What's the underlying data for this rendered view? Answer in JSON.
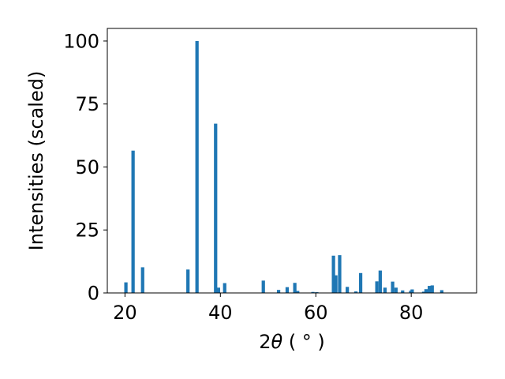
{
  "chart_data": {
    "type": "bar",
    "xlabel_main": "2",
    "xlabel_symbol": "θ",
    "xlabel_unit": " ( ° )",
    "ylabel": "Intensities (scaled)",
    "xlim": [
      16.3,
      93.7
    ],
    "ylim": [
      0,
      105
    ],
    "xticks": [
      20,
      40,
      60,
      80
    ],
    "yticks": [
      0,
      25,
      50,
      75,
      100
    ],
    "bar_color": "#1f77b4",
    "bar_width": 0.7,
    "grid": false,
    "legend": "none",
    "x": [
      20.2,
      21.7,
      23.7,
      33.2,
      35.1,
      39.0,
      39.6,
      40.9,
      49.0,
      52.2,
      54.0,
      55.6,
      56.2,
      59.4,
      60.2,
      63.7,
      64.2,
      65.0,
      66.6,
      68.4,
      69.4,
      72.8,
      73.5,
      74.5,
      76.1,
      76.8,
      78.2,
      79.9,
      80.2,
      82.6,
      83.1,
      83.8,
      84.4,
      86.4
    ],
    "values": [
      4.2,
      56.5,
      10.2,
      9.3,
      100,
      67.2,
      2.1,
      3.9,
      4.9,
      1.2,
      2.3,
      4.0,
      0.8,
      0.4,
      0.3,
      14.8,
      7.0,
      15.0,
      2.4,
      0.6,
      7.9,
      4.6,
      8.9,
      2.1,
      4.5,
      2.1,
      1.0,
      0.9,
      1.4,
      0.5,
      1.5,
      2.8,
      3.0,
      1.1
    ]
  }
}
